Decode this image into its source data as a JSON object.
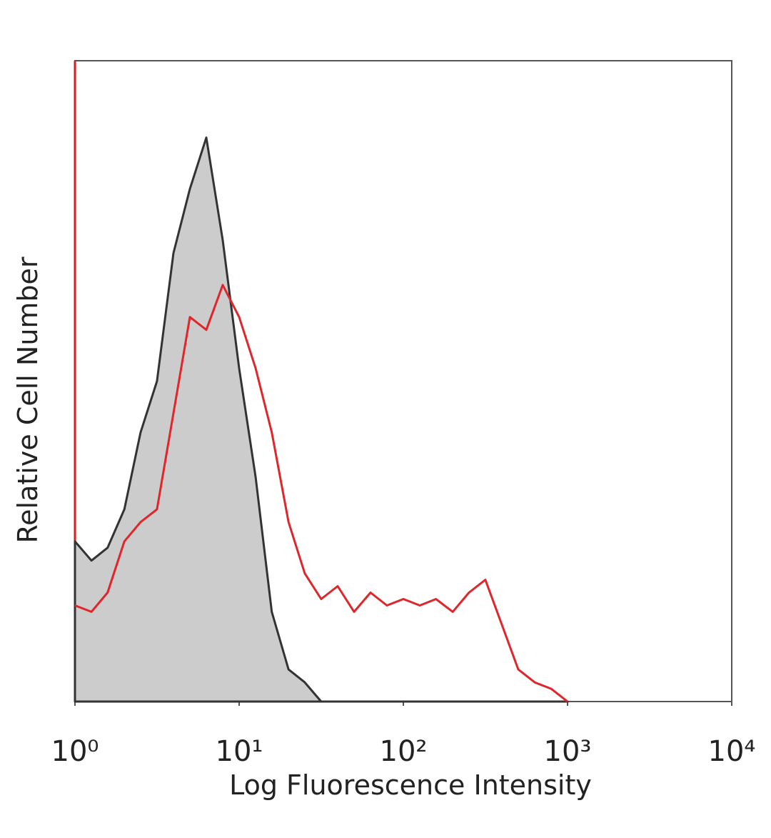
{
  "chart_data": {
    "type": "histogram-overlay",
    "x_label": "Log Fluorescence Intensity",
    "y_label": "Relative Cell Number",
    "xscale": "log",
    "xlim": [
      1,
      10000
    ],
    "xticks": [
      {
        "value": 1,
        "label": "10⁰"
      },
      {
        "value": 10,
        "label": "10¹"
      },
      {
        "value": 100,
        "label": "10²"
      },
      {
        "value": 1000,
        "label": "10³"
      },
      {
        "value": 10000,
        "label": "10⁴"
      }
    ],
    "ylim": [
      0,
      100
    ],
    "x": [
      1,
      1.26,
      1.58,
      2,
      2.51,
      3.16,
      3.98,
      5.01,
      6.31,
      7.94,
      10,
      12.6,
      15.8,
      20,
      25.1,
      31.6,
      39.8,
      50.1,
      63.1,
      79.4,
      100,
      126,
      158,
      200,
      251,
      316,
      398,
      501,
      631,
      794,
      1000
    ],
    "series": [
      {
        "color": "#333333",
        "fill": "#cccccc",
        "values": [
          25,
          22,
          24,
          30,
          42,
          50,
          70,
          80,
          88,
          72,
          52,
          35,
          14,
          5,
          3,
          0,
          0,
          0,
          0,
          0,
          0,
          0,
          0,
          0,
          0,
          0,
          0,
          0,
          0,
          0,
          0
        ]
      },
      {
        "color": "#e0262b",
        "values": [
          15,
          14,
          17,
          25,
          28,
          30,
          45,
          60,
          58,
          65,
          60,
          52,
          42,
          28,
          20,
          16,
          18,
          14,
          17,
          15,
          16,
          15,
          16,
          14,
          17,
          19,
          12,
          5,
          3,
          2,
          0
        ]
      }
    ]
  }
}
